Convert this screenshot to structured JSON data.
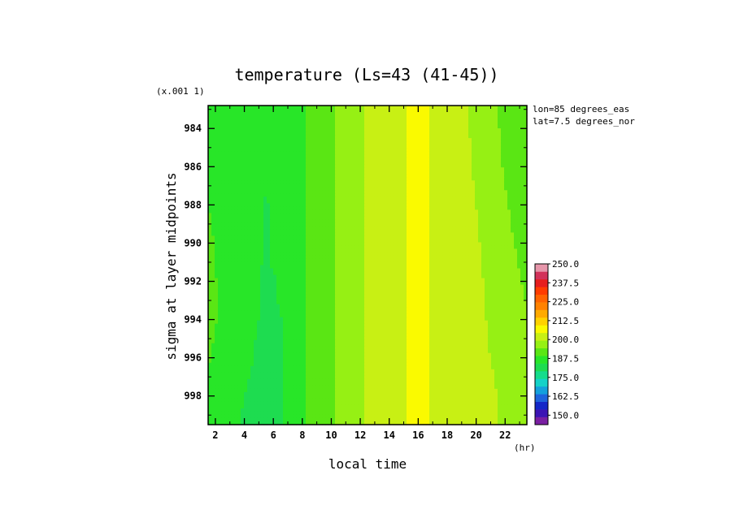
{
  "chart_data": {
    "type": "heatmap",
    "title": "temperature (Ls=43 (41-45))",
    "xlabel": "local time",
    "x_units": "(hr)",
    "ylabel": "sigma at layer midpoints",
    "y_scale_note": "(x.001 1)",
    "xlim": [
      1.5,
      23.5
    ],
    "ylim": [
      999.5,
      982.8
    ],
    "x_ticks": [
      2,
      4,
      6,
      8,
      10,
      12,
      14,
      16,
      18,
      20,
      22
    ],
    "y_ticks": [
      984,
      986,
      988,
      990,
      992,
      994,
      996,
      998
    ],
    "annotations": [
      "lon=85 degrees_eas",
      "lat=7.5 degrees_nor"
    ],
    "colorbar": {
      "ticks": [
        "250.0",
        "237.5",
        "225.0",
        "212.5",
        "200.0",
        "187.5",
        "175.0",
        "162.5",
        "150.0"
      ],
      "min": 143.75,
      "max": 250.0,
      "step": 6.25,
      "colors": [
        "#7a1fa2",
        "#3c14b4",
        "#1428c8",
        "#1e64dc",
        "#14a0dc",
        "#14d2c8",
        "#14dc8c",
        "#1edc50",
        "#28e628",
        "#5ae614",
        "#96f014",
        "#c8f014",
        "#fafa00",
        "#ffd200",
        "#ffaa00",
        "#ff8200",
        "#ff6400",
        "#ff3c00",
        "#e61e1e",
        "#d2325a",
        "#e696aa"
      ]
    },
    "x": [
      1.5,
      2.5,
      3.5,
      4.5,
      5.5,
      6.5,
      7.5,
      8.5,
      9.5,
      10.5,
      11.5,
      12.5,
      13.5,
      14.5,
      15.5,
      16.5,
      17.5,
      18.5,
      19.5,
      20.5,
      21.5,
      22.5,
      23.5
    ],
    "y": [
      983,
      984,
      985,
      986,
      987,
      988,
      989,
      990,
      991,
      992,
      993,
      994,
      995,
      996,
      997,
      998,
      999
    ],
    "z": [
      [
        197,
        196,
        195,
        195,
        195,
        196,
        198,
        201,
        204,
        207,
        210,
        213,
        216,
        218,
        219,
        219,
        218,
        216,
        212,
        209,
        206,
        203,
        201
      ],
      [
        198,
        196,
        195,
        195,
        194.5,
        195.5,
        198,
        201,
        204,
        207,
        210,
        213,
        216,
        218,
        219,
        219,
        218,
        216,
        212.5,
        209.5,
        206.5,
        203.5,
        201.5
      ],
      [
        198.5,
        197,
        195.5,
        194.5,
        194.5,
        195.5,
        198,
        201,
        204,
        207,
        210,
        213,
        216,
        218,
        219,
        219,
        218,
        216,
        213,
        210,
        207,
        204,
        202
      ],
      [
        199,
        197,
        195.5,
        194.5,
        194,
        195.5,
        198,
        201,
        204,
        207,
        210,
        213,
        216,
        218,
        219,
        219,
        218,
        216,
        213,
        210,
        207,
        204.5,
        202.5
      ],
      [
        199.5,
        197.5,
        196,
        194.5,
        194,
        195.5,
        198,
        201,
        204,
        207,
        210,
        213,
        216,
        218,
        219,
        219,
        218,
        216.5,
        213.5,
        210.5,
        207.5,
        205,
        203
      ],
      [
        200,
        198,
        196,
        194.5,
        193.5,
        195,
        198,
        201,
        204,
        207,
        210,
        213,
        216,
        218,
        219,
        219,
        218,
        216.5,
        214,
        211,
        208,
        205.5,
        203.5
      ],
      [
        200.5,
        198,
        196,
        194.5,
        193.5,
        195,
        198,
        201,
        204,
        207,
        210,
        213,
        216,
        218,
        219,
        219,
        218,
        216.5,
        214,
        211.5,
        208.5,
        206,
        204
      ],
      [
        201,
        198.5,
        196.5,
        194.5,
        193.5,
        194.5,
        197.5,
        201,
        204,
        207,
        210,
        213,
        216,
        218,
        219,
        219,
        218,
        216.5,
        214,
        212,
        209,
        206.5,
        204.5
      ],
      [
        201,
        198.5,
        196.5,
        194.5,
        193.5,
        194.5,
        197.5,
        201,
        204,
        207,
        210,
        213,
        216,
        218,
        219,
        219,
        218,
        216.5,
        214,
        212,
        209.5,
        207,
        205
      ],
      [
        201.5,
        199,
        196.5,
        194.5,
        193,
        194,
        197.5,
        201,
        204,
        207,
        210,
        213,
        216,
        218,
        219,
        219,
        218,
        216.5,
        214.5,
        212.5,
        210,
        207.5,
        205.5
      ],
      [
        201.5,
        199,
        196.5,
        194.5,
        193,
        194,
        197,
        201,
        204,
        207,
        210,
        213,
        216,
        218,
        219,
        219,
        218,
        216.5,
        214.5,
        212.5,
        210,
        208,
        206
      ],
      [
        201.5,
        199,
        196.5,
        194.5,
        193,
        193.5,
        197,
        201,
        204,
        207,
        210,
        213,
        216,
        218,
        219,
        219,
        218,
        217,
        215,
        213,
        210.5,
        208.5,
        206.5
      ],
      [
        201,
        198.5,
        196,
        194,
        193,
        193.5,
        197,
        201,
        204,
        207,
        210,
        213,
        216,
        218,
        219,
        219,
        218,
        217,
        215,
        213,
        211,
        209,
        207
      ],
      [
        200.5,
        198,
        195.5,
        194,
        193,
        193.5,
        197,
        201,
        204,
        207,
        210,
        213,
        216,
        218,
        219,
        219,
        218,
        217,
        215,
        213.5,
        211.5,
        209.5,
        207.5
      ],
      [
        199.5,
        197,
        195,
        193.5,
        193,
        193.5,
        196.5,
        201,
        204,
        207,
        210,
        213,
        216,
        218,
        219,
        219,
        218,
        217,
        215.5,
        214,
        212,
        210,
        208
      ],
      [
        198.5,
        196,
        194.5,
        193,
        192.5,
        193,
        196.5,
        201,
        204,
        207,
        210,
        213,
        216,
        218,
        219,
        219,
        218,
        217,
        215.5,
        214,
        212.5,
        210.5,
        208.5
      ],
      [
        197.5,
        195.5,
        194,
        193,
        192.5,
        193,
        196.5,
        201,
        204,
        207,
        210,
        213,
        216,
        218,
        219,
        219,
        218,
        217,
        215.5,
        214,
        212.5,
        211,
        209
      ]
    ]
  }
}
